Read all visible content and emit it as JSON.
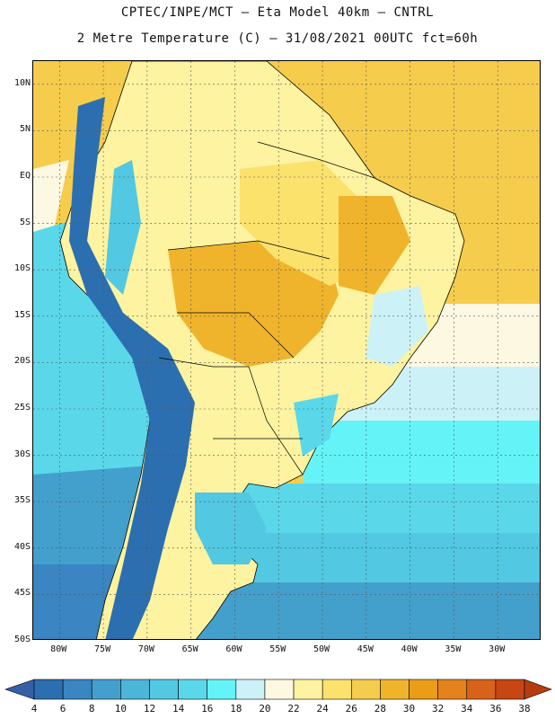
{
  "title": {
    "line1": "CPTEC/INPE/MCT –  Eta Model 40km – CNTRL",
    "line2": "2 Metre Temperature (C) – 31/08/2021 00UTC fct=60h"
  },
  "axes": {
    "lat_labels": [
      "10N",
      "5N",
      "EQ",
      "5S",
      "10S",
      "15S",
      "20S",
      "25S",
      "30S",
      "35S",
      "40S",
      "45S",
      "50S"
    ],
    "lat_values": [
      10,
      5,
      0,
      -5,
      -10,
      -15,
      -20,
      -25,
      -30,
      -35,
      -40,
      -45,
      -50
    ],
    "lon_labels": [
      "80W",
      "75W",
      "70W",
      "65W",
      "60W",
      "55W",
      "50W",
      "45W",
      "40W",
      "35W",
      "30W"
    ],
    "lon_values": [
      -80,
      -75,
      -70,
      -65,
      -60,
      -55,
      -50,
      -45,
      -40,
      -35,
      -30
    ],
    "lat_range": [
      -50,
      12.5
    ],
    "lon_range": [
      -83,
      -25
    ]
  },
  "colorbar": {
    "ticks": [
      "4",
      "6",
      "8",
      "10",
      "12",
      "14",
      "16",
      "18",
      "20",
      "22",
      "24",
      "26",
      "28",
      "30",
      "32",
      "34",
      "36",
      "38"
    ],
    "colors": [
      "#2c6fb0",
      "#3a85c2",
      "#43a0cc",
      "#4bb6d8",
      "#52c8e2",
      "#5ad8ea",
      "#64f4f8",
      "#ccf2f8",
      "#fdf8e2",
      "#fdf3a0",
      "#fbe26c",
      "#f6cc4c",
      "#f0b42c",
      "#eb9c18",
      "#e4821c",
      "#d8621a",
      "#c64614"
    ],
    "left_arrow_color": "#3560a8",
    "right_arrow_color": "#b43c10"
  },
  "colors": {
    "ocean_pacific_warm": "#5ad8ea",
    "ocean_pacific_cold": "#3a85c2",
    "andes_cold": "#2c6fb0",
    "atlantic_tropical": "#f6cc4c",
    "atlantic_mid": "#fdf8e2",
    "atlantic_cool": "#ccf2f8",
    "land_hot": "#f0b42c",
    "land_warm": "#fbe26c",
    "land_mild": "#fdf3a0",
    "patagonia": "#52c8e2"
  }
}
